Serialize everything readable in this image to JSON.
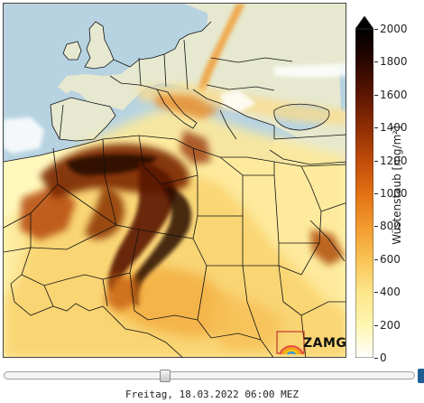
{
  "colorbar": {
    "label": "Wüstenstaub [mg/m²]",
    "min": 0,
    "max": 2000,
    "ticks": [
      0,
      200,
      400,
      600,
      800,
      1000,
      1200,
      1400,
      1600,
      1800,
      2000
    ],
    "colors": [
      "#ffffff",
      "#fff6b0",
      "#fde68a",
      "#f9c255",
      "#f29a2e",
      "#e27013",
      "#c04c0a",
      "#8f2d05",
      "#5c1502",
      "#2a0700",
      "#000000"
    ]
  },
  "logo": {
    "text": "ZAMG"
  },
  "timeline": {
    "position": 0.39,
    "timestamp": "Freitag, 18.03.2022 06:00 MEZ"
  },
  "map": {
    "ocean_color": "#b7d3e2",
    "land_color": "#e7ead2",
    "border_color": "#111111"
  }
}
